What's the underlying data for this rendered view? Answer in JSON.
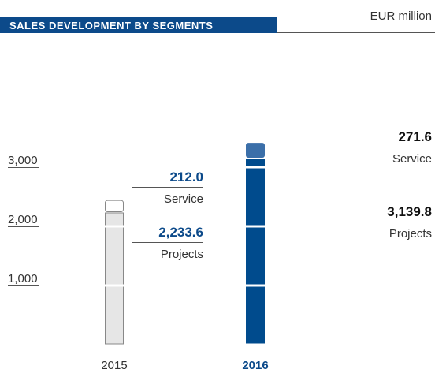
{
  "chart_data": {
    "type": "bar",
    "stacked": true,
    "title": "SALES DEVELOPMENT BY SEGMENTS",
    "unit": "EUR million",
    "categories": [
      "2015",
      "2016"
    ],
    "series": [
      {
        "name": "Projects",
        "colors": [
          "#e6e6e6",
          "#004b8d"
        ],
        "values": [
          2233.6,
          3139.8
        ],
        "value_labels": [
          "2,233.6",
          "3,139.8"
        ]
      },
      {
        "name": "Service",
        "colors": [
          "#ffffff",
          "#3b6fa9"
        ],
        "values": [
          212.0,
          271.6
        ],
        "value_labels": [
          "212.0",
          "271.6"
        ]
      }
    ],
    "ylim": [
      0,
      3600
    ],
    "yticks": [
      {
        "value": 1000,
        "label": "1,000"
      },
      {
        "value": 2000,
        "label": "2,000"
      },
      {
        "value": 3000,
        "label": "3,000"
      }
    ]
  }
}
